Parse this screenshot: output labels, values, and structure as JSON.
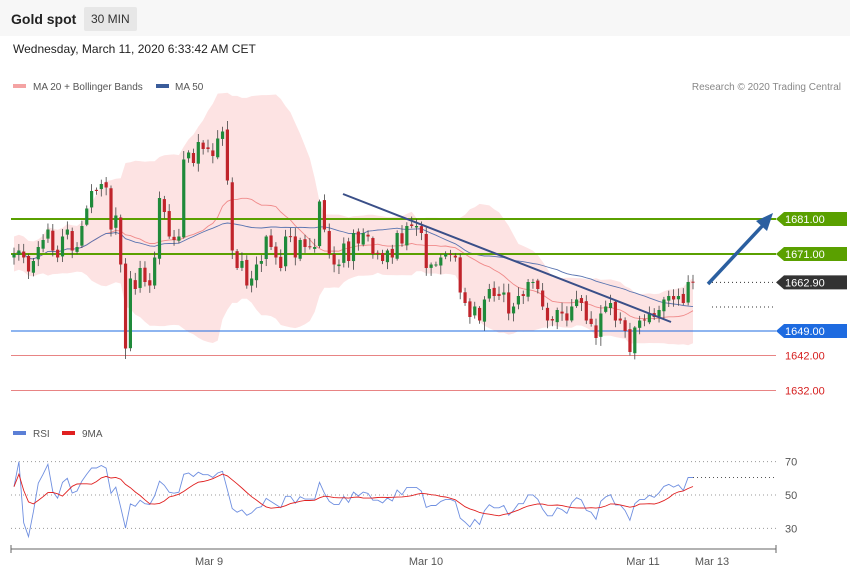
{
  "header": {
    "instrument": "Gold spot",
    "timeframe": "30 MIN",
    "datetime": "Wednesday, March 11, 2020 6:33:42 AM CET"
  },
  "price_panel": {
    "legend": [
      {
        "label": "MA 20 + Bollinger Bands",
        "color": "#f4a3a3"
      },
      {
        "label": "MA 50",
        "color": "#3a5c9a"
      }
    ],
    "credit": "Research © 2020 Trading Central",
    "y_range": [
      1625,
      1715
    ],
    "levels": [
      {
        "value": 1681,
        "label": "1681.00",
        "color": "#5aa000",
        "style": "filled"
      },
      {
        "value": 1671,
        "label": "1671.00",
        "color": "#5aa000",
        "style": "filled"
      },
      {
        "value": 1662.9,
        "label": "1662.90",
        "color": "#333333",
        "style": "current"
      },
      {
        "value": 1649,
        "label": "1649.00",
        "color": "#1e6be0",
        "style": "filled"
      },
      {
        "value": 1642,
        "label": "1642.00",
        "color": "#d62020",
        "style": "text"
      },
      {
        "value": 1632,
        "label": "1632.00",
        "color": "#d62020",
        "style": "text"
      }
    ]
  },
  "rsi_panel": {
    "legend": [
      {
        "label": "RSI",
        "color": "#5b7fd6"
      },
      {
        "label": "9MA",
        "color": "#e02020"
      }
    ],
    "y_range": [
      20,
      80
    ],
    "ticks": [
      "70",
      "50",
      "30"
    ]
  },
  "x_axis": {
    "labels": [
      "Mar 9",
      "Mar 10",
      "Mar 11",
      "Mar 13"
    ]
  },
  "chart_data": {
    "type": "candlestick",
    "title": "Gold spot",
    "interval": "30 MIN",
    "close": [
      1671,
      1672,
      1670,
      1666,
      1669,
      1673,
      1675,
      1678,
      1672,
      1670,
      1676,
      1678,
      1672,
      1673,
      1679,
      1684,
      1689,
      1689,
      1691,
      1690,
      1678,
      1682,
      1668,
      1644,
      1664,
      1661,
      1667,
      1663,
      1662,
      1670,
      1687,
      1683,
      1676,
      1675,
      1676,
      1698,
      1700,
      1697,
      1703,
      1701,
      1701,
      1699,
      1704,
      1706,
      1692,
      1672,
      1667,
      1669,
      1662,
      1664,
      1668,
      1669,
      1676,
      1673,
      1670,
      1667,
      1676,
      1676,
      1670,
      1675,
      1673,
      1673,
      1673,
      1686,
      1678,
      1671,
      1668,
      1668,
      1674,
      1669,
      1677,
      1674,
      1677,
      1676,
      1671,
      1671,
      1669,
      1672,
      1670,
      1677,
      1674,
      1679,
      1679,
      1679,
      1677,
      1667,
      1668,
      1668,
      1670,
      1671,
      1671,
      1670,
      1660,
      1657,
      1653,
      1656,
      1652,
      1658,
      1661,
      1659,
      1659,
      1660,
      1654,
      1656,
      1659,
      1659,
      1663,
      1663,
      1661,
      1656,
      1652,
      1652,
      1655,
      1654,
      1652,
      1656,
      1658,
      1657,
      1652,
      1651,
      1647,
      1654,
      1656,
      1657,
      1652,
      1652,
      1649,
      1643,
      1650,
      1652,
      1652,
      1654,
      1653,
      1655,
      1658,
      1659,
      1658,
      1659,
      1657,
      1663,
      1663
    ],
    "ma20_bollinger": {
      "mid_first": 1673,
      "upper_max": 1712,
      "lower_min": 1648
    },
    "ma50": {
      "first": 1651,
      "last": 1658
    },
    "rsi_last": 61,
    "rsi_ma_last": 56
  }
}
